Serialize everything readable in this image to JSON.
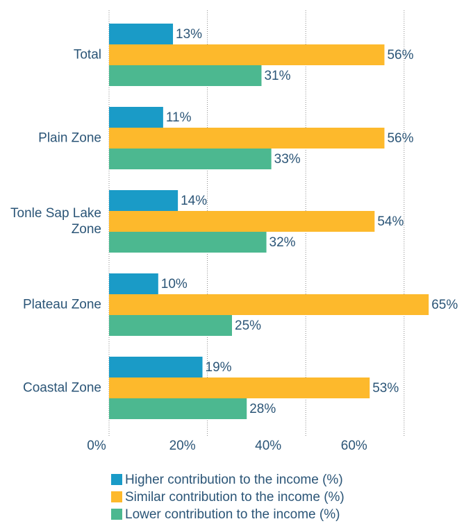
{
  "chart_data": {
    "type": "bar",
    "orientation": "horizontal",
    "categories": [
      "Total",
      "Plain Zone",
      "Tonle Sap Lake Zone",
      "Plateau Zone",
      "Coastal Zone"
    ],
    "series": [
      {
        "name": "Higher contribution to the income (%)",
        "color": "#1a9bc7",
        "values": [
          13,
          11,
          14,
          10,
          19
        ],
        "value_labels": [
          "13%",
          "11%",
          "14%",
          "10%",
          "19%"
        ]
      },
      {
        "name": "Similar contribution to the income (%)",
        "color": "#fdb92c",
        "values": [
          56,
          56,
          54,
          65,
          53
        ],
        "value_labels": [
          "56%",
          "56%",
          "54%",
          "65%",
          "53%"
        ]
      },
      {
        "name": "Lower contribution to the income (%)",
        "color": "#4cb890",
        "values": [
          31,
          33,
          32,
          25,
          28
        ],
        "value_labels": [
          "31%",
          "33%",
          "32%",
          "25%",
          "28%"
        ]
      }
    ],
    "xlim": [
      0,
      70
    ],
    "xticks": [
      {
        "value": 0,
        "label": "0%"
      },
      {
        "value": 20,
        "label": "20%"
      },
      {
        "value": 40,
        "label": "40%"
      },
      {
        "value": 60,
        "label": "60%"
      }
    ],
    "grid": true,
    "legend": "bottom"
  }
}
